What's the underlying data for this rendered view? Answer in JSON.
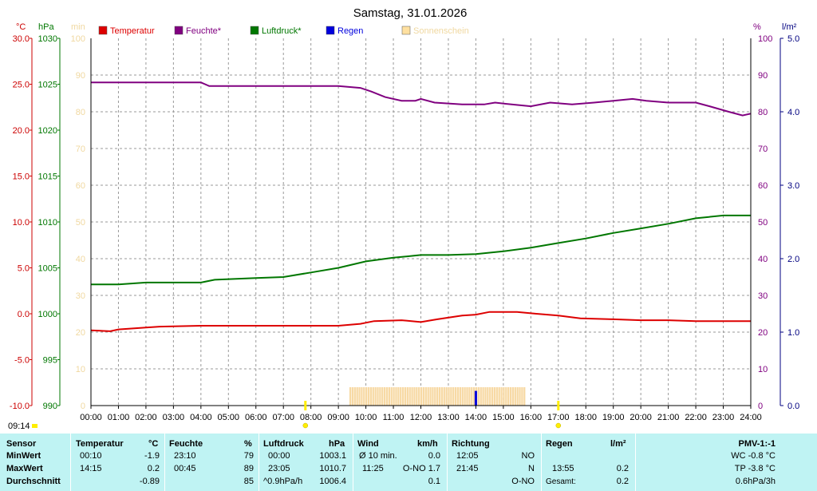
{
  "title": "Samstag, 31.01.2026",
  "legend": [
    {
      "label": "Temperatur",
      "color": "#dd0000"
    },
    {
      "label": "Feuchte*",
      "color": "#800080"
    },
    {
      "label": "Luftdruck*",
      "color": "#007700"
    },
    {
      "label": "Regen",
      "color": "#0000dd"
    },
    {
      "label": "Sonnenschein",
      "color": "#ffe0a0"
    }
  ],
  "axes": {
    "temperature": {
      "unit": "°C",
      "color": "#cc0000",
      "range": [
        -10,
        30
      ],
      "ticks": [
        "30.0",
        "25.0",
        "20.0",
        "15.0",
        "10.0",
        "5.0",
        "0.0",
        "-5.0",
        "-10.0"
      ]
    },
    "pressure": {
      "unit": "hPa",
      "color": "#007700",
      "range": [
        990,
        1030
      ],
      "ticks": [
        "1030",
        "1025",
        "1020",
        "1015",
        "1010",
        "1005",
        "1000",
        "995",
        "990"
      ]
    },
    "sunshine": {
      "unit": "min",
      "color": "#f0d8a0",
      "range": [
        0,
        100
      ],
      "ticks": [
        "100",
        "90",
        "80",
        "70",
        "60",
        "50",
        "40",
        "30",
        "20",
        "10",
        "0"
      ]
    },
    "humidity": {
      "unit": "%",
      "color": "#800080",
      "range": [
        0,
        100
      ],
      "ticks": [
        "100",
        "90",
        "80",
        "70",
        "60",
        "50",
        "40",
        "30",
        "20",
        "10",
        "0"
      ]
    },
    "rain": {
      "unit": "l/m²",
      "color": "#000080",
      "range": [
        0,
        5
      ],
      "ticks": [
        "5.0",
        "4.0",
        "3.0",
        "2.0",
        "1.0",
        "0.0"
      ]
    }
  },
  "x_ticks": [
    "00:00",
    "01:00",
    "02:00",
    "03:00",
    "04:00",
    "05:00",
    "06:00",
    "07:00",
    "08:00",
    "09:00",
    "10:00",
    "11:00",
    "12:00",
    "13:00",
    "14:00",
    "15:00",
    "16:00",
    "17:00",
    "18:00",
    "19:00",
    "20:00",
    "21:00",
    "22:00",
    "23:00",
    "24:00"
  ],
  "current_time": "09:14",
  "chart_data": {
    "type": "line",
    "title": "Samstag, 31.01.2026",
    "xlabel": "",
    "x_range_hours": [
      0,
      24
    ],
    "grid": true,
    "legend_position": "top",
    "series": [
      {
        "name": "Temperatur",
        "axis": "temperature",
        "color": "#dd0000",
        "points": [
          [
            0,
            -1.8
          ],
          [
            0.7,
            -1.9
          ],
          [
            1,
            -1.7
          ],
          [
            2,
            -1.5
          ],
          [
            2.5,
            -1.4
          ],
          [
            4,
            -1.3
          ],
          [
            9,
            -1.3
          ],
          [
            9.8,
            -1.1
          ],
          [
            10.3,
            -0.8
          ],
          [
            11.3,
            -0.7
          ],
          [
            12,
            -0.9
          ],
          [
            12.6,
            -0.6
          ],
          [
            13.5,
            -0.2
          ],
          [
            14,
            -0.1
          ],
          [
            14.5,
            0.2
          ],
          [
            15.5,
            0.2
          ],
          [
            16.2,
            0.0
          ],
          [
            17,
            -0.2
          ],
          [
            17.8,
            -0.5
          ],
          [
            19,
            -0.6
          ],
          [
            20,
            -0.7
          ],
          [
            21,
            -0.7
          ],
          [
            22,
            -0.8
          ],
          [
            24,
            -0.8
          ]
        ]
      },
      {
        "name": "Feuchte*",
        "axis": "humidity",
        "color": "#800080",
        "points": [
          [
            0,
            88
          ],
          [
            4,
            88
          ],
          [
            4.3,
            87
          ],
          [
            9,
            87
          ],
          [
            9.8,
            86.5
          ],
          [
            10.2,
            85.5
          ],
          [
            10.7,
            84
          ],
          [
            11.3,
            83
          ],
          [
            11.8,
            83
          ],
          [
            12,
            83.5
          ],
          [
            12.5,
            82.5
          ],
          [
            13.5,
            82
          ],
          [
            14.3,
            82
          ],
          [
            14.7,
            82.5
          ],
          [
            15.3,
            82
          ],
          [
            16,
            81.5
          ],
          [
            16.7,
            82.5
          ],
          [
            17.5,
            82
          ],
          [
            18.3,
            82.5
          ],
          [
            19,
            83
          ],
          [
            19.7,
            83.5
          ],
          [
            20.2,
            83
          ],
          [
            21,
            82.5
          ],
          [
            22,
            82.5
          ],
          [
            22.5,
            81.5
          ],
          [
            23.2,
            80
          ],
          [
            23.7,
            79
          ],
          [
            24,
            79.5
          ]
        ]
      },
      {
        "name": "Luftdruck*",
        "axis": "pressure",
        "color": "#007700",
        "points": [
          [
            0,
            1003.2
          ],
          [
            1,
            1003.2
          ],
          [
            2,
            1003.4
          ],
          [
            4,
            1003.4
          ],
          [
            4.5,
            1003.7
          ],
          [
            6,
            1003.9
          ],
          [
            7,
            1004.0
          ],
          [
            8,
            1004.5
          ],
          [
            9,
            1005.0
          ],
          [
            10,
            1005.7
          ],
          [
            11,
            1006.1
          ],
          [
            12,
            1006.4
          ],
          [
            13,
            1006.4
          ],
          [
            14,
            1006.5
          ],
          [
            15,
            1006.8
          ],
          [
            16,
            1007.2
          ],
          [
            17,
            1007.7
          ],
          [
            18,
            1008.2
          ],
          [
            19,
            1008.8
          ],
          [
            20,
            1009.3
          ],
          [
            21,
            1009.8
          ],
          [
            22,
            1010.4
          ],
          [
            23,
            1010.7
          ],
          [
            24,
            1010.7
          ]
        ]
      }
    ],
    "sunshine_bars": {
      "axis": "sunshine",
      "from_hour": 9.4,
      "to_hour": 15.75,
      "value_min": 5
    },
    "rain_bars": [
      {
        "hour": 14.0,
        "value": 0.2
      }
    ],
    "markers": [
      {
        "hour": 7.8,
        "type": "sunrise"
      },
      {
        "hour": 17.0,
        "type": "sunset"
      }
    ]
  },
  "stats": {
    "sensor_header": "Sensor",
    "min_label": "MinWert",
    "max_label": "MaxWert",
    "avg_label": "Durchschnitt",
    "temperature": {
      "header": "Temperatur",
      "unit": "°C",
      "min_time": "00:10",
      "min_val": "-1.9",
      "max_time": "14:15",
      "max_val": "0.2",
      "avg": "-0.89"
    },
    "humidity": {
      "header": "Feuchte",
      "unit": "%",
      "min_time": "23:10",
      "min_val": "79",
      "max_time": "00:45",
      "max_val": "89",
      "avg": "85"
    },
    "pressure": {
      "header": "Luftdruck",
      "unit": "hPa",
      "min_time": "00:00",
      "min_val": "1003.1",
      "max_time": "23:05",
      "max_val": "1010.7",
      "trend": "^0.9hPa/h",
      "avg": "1006.4"
    },
    "wind": {
      "header": "Wind",
      "unit": "km/h",
      "row1_label": "Ø 10 min.",
      "row1_val": "0.0",
      "row2_time": "11:25",
      "row2_val": "O-NO 1.7",
      "avg": "0.1"
    },
    "direction": {
      "header": "Richtung",
      "row1_time": "12:05",
      "row1_val": "NO",
      "row2_time": "21:45",
      "row2_val": "N",
      "avg": "O-NO"
    },
    "rain": {
      "header": "Regen",
      "unit": "l/m²",
      "row2_time": "13:55",
      "row2_val": "0.2",
      "total_label": "Gesamt:",
      "total_val": "0.2"
    },
    "pmv": {
      "header": "PMV-1:-1",
      "wc": "WC -0.8 °C",
      "tp": "TP -3.8 °C",
      "trend": "0.6hPa/3h"
    }
  }
}
